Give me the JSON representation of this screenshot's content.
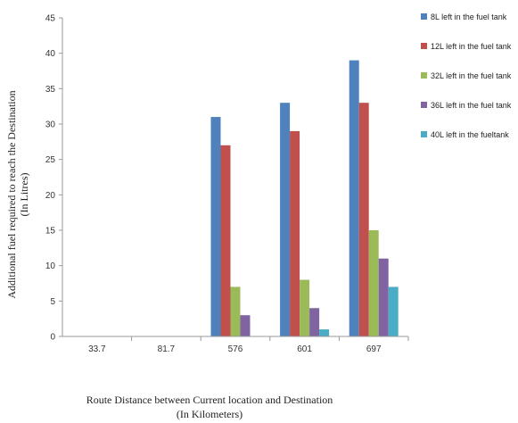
{
  "chart_data": {
    "type": "bar",
    "categories": [
      "33.7",
      "81.7",
      "576",
      "601",
      "697"
    ],
    "series": [
      {
        "name": "8L left in the fuel tank",
        "color": "#4f81bd",
        "values": [
          0,
          0,
          31,
          33,
          39
        ]
      },
      {
        "name": "12L left in the fuel tank",
        "color": "#c0504d",
        "values": [
          0,
          0,
          27,
          29,
          33
        ]
      },
      {
        "name": "32L left in the fuel tank",
        "color": "#9bbb59",
        "values": [
          0,
          0,
          7,
          8,
          15
        ]
      },
      {
        "name": "36L left in the fuel tank",
        "color": "#8064a2",
        "values": [
          0,
          0,
          3,
          4,
          11
        ]
      },
      {
        "name": "40L left in the fueltank",
        "color": "#4bacc6",
        "values": [
          0,
          0,
          0,
          1,
          7
        ]
      }
    ],
    "ylim": [
      0,
      45
    ],
    "yticks": [
      0,
      5,
      10,
      15,
      20,
      25,
      30,
      35,
      40,
      45
    ],
    "ylabel_line1": "Additional fuel required to reach the Destination",
    "ylabel_line2": "(In Litres)",
    "xlabel_line1": "Route Distance between Current location and Destination",
    "xlabel_line2": "(In Kilometers)",
    "legend_position": "right",
    "grid": false
  }
}
